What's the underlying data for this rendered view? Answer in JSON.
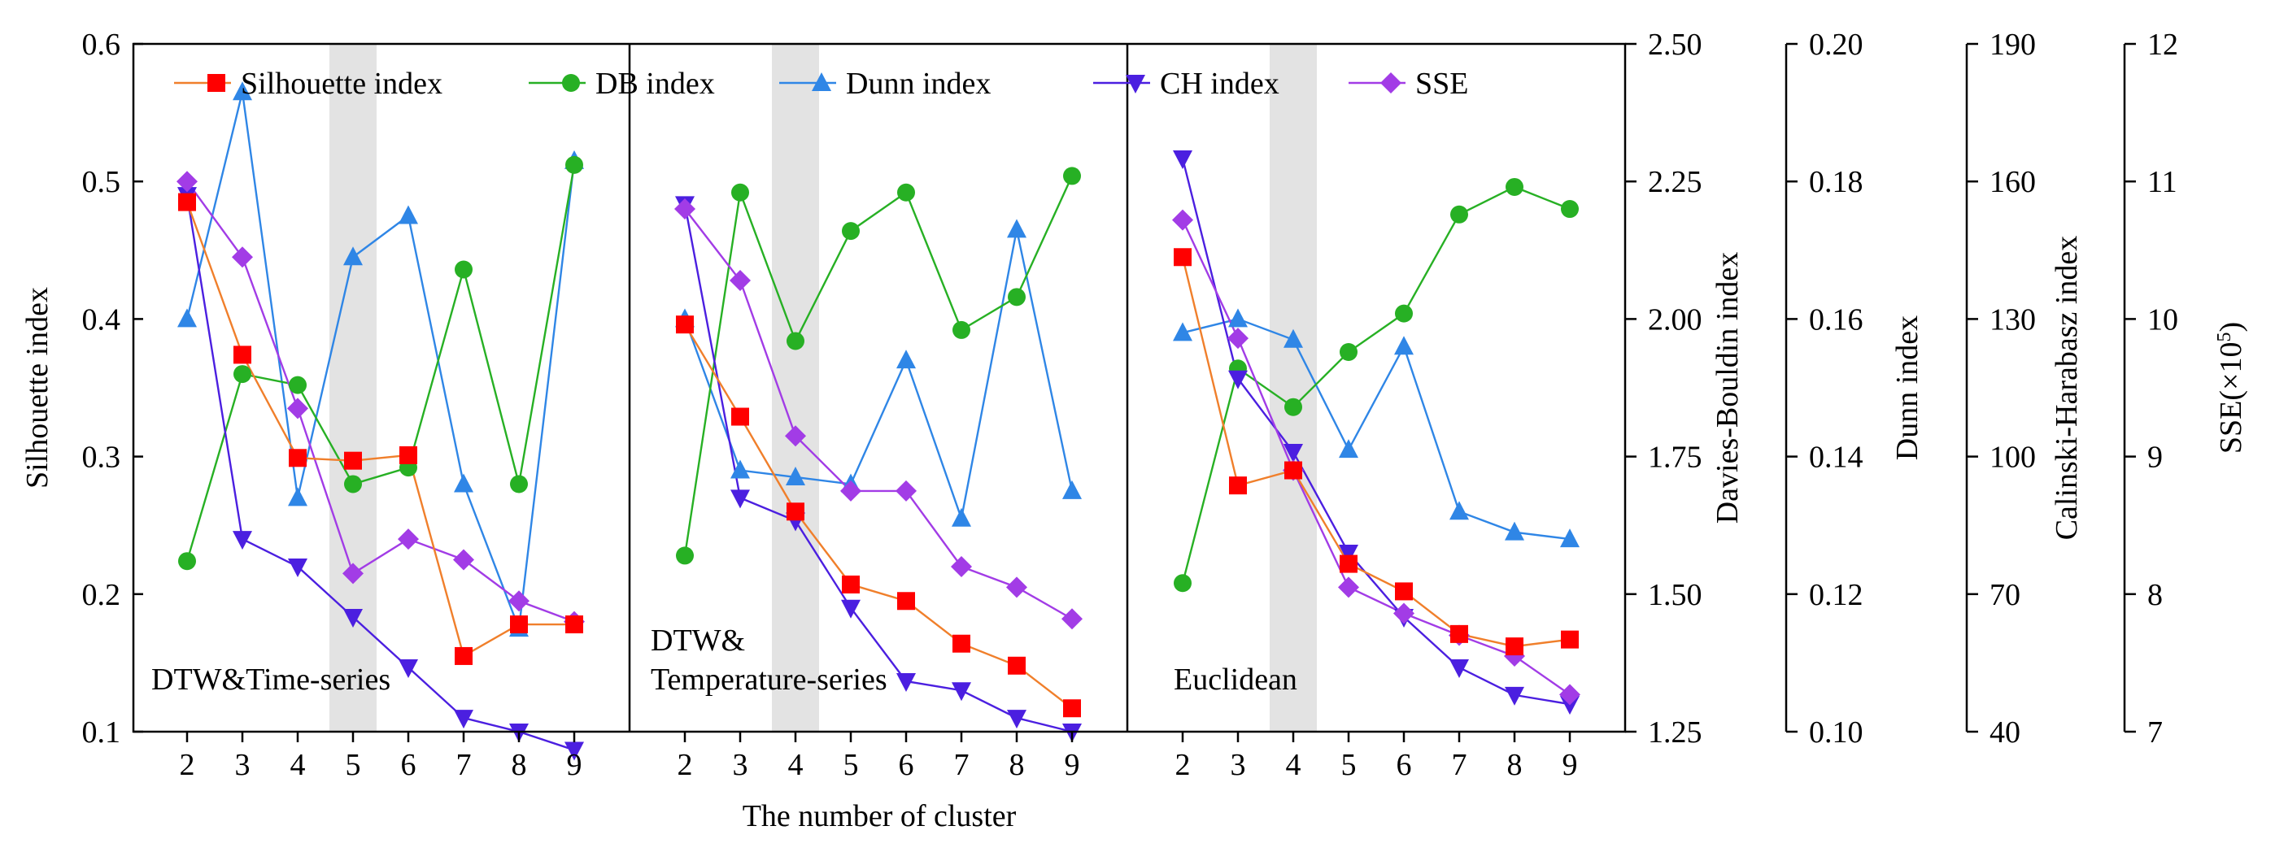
{
  "chart_data": {
    "type": "line",
    "xlabel": "The number of cluster",
    "categories": [
      2,
      3,
      4,
      5,
      6,
      7,
      8,
      9
    ],
    "highlight_category": 5,
    "panels": [
      {
        "label": "DTW&Time-series",
        "highlight_category": 5,
        "series": {
          "silhouette": [
            0.485,
            0.374,
            0.299,
            0.297,
            0.301,
            0.155,
            0.178,
            0.178
          ],
          "db": [
            1.56,
            1.9,
            1.88,
            1.7,
            1.73,
            2.09,
            1.7,
            2.28
          ],
          "dunn": [
            0.16,
            0.193,
            0.134,
            0.169,
            0.175,
            0.136,
            0.115,
            0.183
          ],
          "ch": [
            157,
            82,
            76,
            65,
            54,
            43,
            40,
            36
          ],
          "sse": [
            11.0,
            10.45,
            9.35,
            8.15,
            8.4,
            8.25,
            7.95,
            7.8
          ]
        }
      },
      {
        "label": "DTW&\nTemperature-series",
        "highlight_category": 4,
        "series": {
          "silhouette": [
            0.396,
            0.329,
            0.26,
            0.207,
            0.195,
            0.164,
            0.148,
            0.117
          ],
          "db": [
            1.57,
            2.23,
            1.96,
            2.16,
            2.23,
            1.98,
            2.04,
            2.26
          ],
          "dunn": [
            0.16,
            0.138,
            0.137,
            0.136,
            0.154,
            0.131,
            0.173,
            0.135
          ],
          "ch": [
            155,
            91,
            86,
            67,
            51,
            49,
            43,
            40
          ],
          "sse": [
            10.8,
            10.28,
            9.15,
            8.75,
            8.75,
            8.2,
            8.05,
            7.82
          ]
        }
      },
      {
        "label": "Euclidean",
        "highlight_category": 4,
        "series": {
          "silhouette": [
            0.445,
            0.279,
            0.29,
            0.222,
            0.202,
            0.171,
            0.162,
            0.167
          ],
          "db": [
            1.52,
            1.91,
            1.84,
            1.94,
            2.01,
            2.19,
            2.24,
            2.2
          ],
          "dunn": [
            0.158,
            0.16,
            0.157,
            0.141,
            0.156,
            0.132,
            0.129,
            0.128
          ],
          "ch": [
            165,
            117,
            101,
            79,
            65,
            54,
            48,
            46
          ],
          "sse": [
            10.72,
            9.86,
            8.9,
            8.05,
            7.86,
            7.7,
            7.55,
            7.27
          ]
        }
      }
    ],
    "axes": {
      "silhouette": {
        "label": "Silhouette index",
        "min": 0.1,
        "max": 0.6,
        "ticks": [
          "0.1",
          "0.2",
          "0.3",
          "0.4",
          "0.5",
          "0.6"
        ]
      },
      "db": {
        "label": "Davies-Bouldin index",
        "min": 1.25,
        "max": 2.5,
        "ticks": [
          "1.25",
          "1.50",
          "1.75",
          "2.00",
          "2.25",
          "2.50"
        ]
      },
      "dunn": {
        "label": "Dunn index",
        "min": 0.1,
        "max": 0.2,
        "ticks": [
          "0.10",
          "0.12",
          "0.14",
          "0.16",
          "0.18",
          "0.20"
        ]
      },
      "ch": {
        "label": "Calinski-Harabasz index",
        "min": 40,
        "max": 190,
        "ticks": [
          "40",
          "70",
          "100",
          "130",
          "160",
          "190"
        ]
      },
      "sse": {
        "label": "SSE(×10",
        "label_superscript": "5",
        "label_close": ")",
        "min": 7,
        "max": 12,
        "ticks": [
          "7",
          "8",
          "9",
          "10",
          "11",
          "12"
        ]
      }
    },
    "legend": [
      {
        "key": "silhouette",
        "name": "Silhouette index",
        "color": "#f07f2b",
        "marker_color": "#ff0000",
        "marker": "square"
      },
      {
        "key": "db",
        "name": "DB index",
        "color": "#27b024",
        "marker_color": "#27b024",
        "marker": "circle"
      },
      {
        "key": "dunn",
        "name": "Dunn index",
        "color": "#2f86e6",
        "marker_color": "#2f86e6",
        "marker": "triangle-up"
      },
      {
        "key": "ch",
        "name": "CH index",
        "color": "#4b1fe0",
        "marker_color": "#4b1fe0",
        "marker": "triangle-down"
      },
      {
        "key": "sse",
        "name": "SSE",
        "color": "#a23ce6",
        "marker_color": "#a23ce6",
        "marker": "diamond"
      }
    ],
    "legend_position": "top",
    "highlight_color": "#e3e3e3"
  }
}
